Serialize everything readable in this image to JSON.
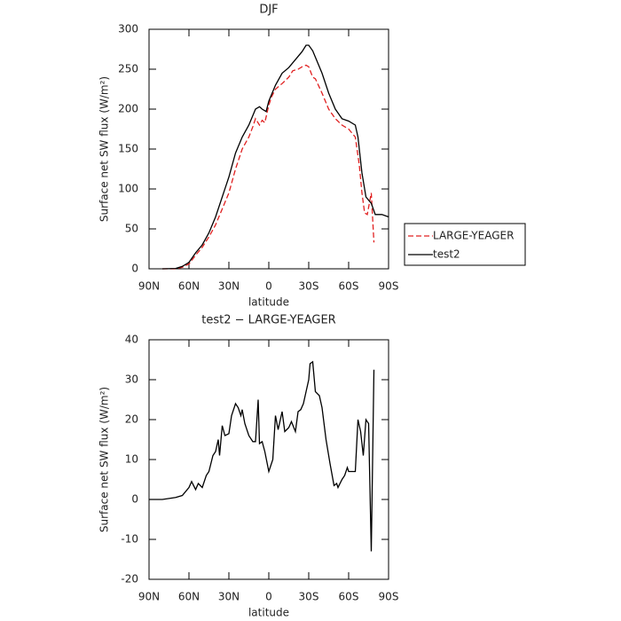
{
  "chart_data": [
    {
      "type": "line",
      "title": "DJF",
      "x_label": "latitude",
      "y_label": "Surface net SW flux (W/m²)",
      "xlim": [
        90,
        -90
      ],
      "xticks": [
        {
          "value": 90,
          "label": "90N"
        },
        {
          "value": 60,
          "label": "60N"
        },
        {
          "value": 30,
          "label": "30N"
        },
        0,
        {
          "value": -30,
          "label": "30S"
        },
        {
          "value": -60,
          "label": "60S"
        },
        {
          "value": -90,
          "label": "90S"
        }
      ],
      "ylim": [
        0,
        300
      ],
      "yticks": [
        0,
        50,
        100,
        150,
        200,
        250,
        300
      ],
      "legend": "right",
      "series": [
        {
          "name": "LARGE-YEAGER",
          "color": "#e02020",
          "dash": true,
          "x": [
            80,
            70,
            65,
            60,
            55,
            50,
            45,
            40,
            35,
            30,
            25,
            20,
            15,
            12,
            10,
            7,
            5,
            3,
            0,
            -2,
            -5,
            -10,
            -15,
            -18,
            -22,
            -25,
            -28,
            -30,
            -33,
            -35,
            -40,
            -45,
            -50,
            -55,
            -60,
            -65,
            -68,
            -70,
            -72,
            -74,
            -77,
            -79
          ],
          "values": [
            0,
            0,
            2,
            6,
            17,
            27,
            40,
            55,
            75,
            95,
            125,
            150,
            165,
            178,
            188,
            180,
            186,
            183,
            205,
            215,
            225,
            232,
            240,
            248,
            250,
            253,
            255,
            253,
            240,
            238,
            220,
            200,
            188,
            180,
            175,
            165,
            130,
            95,
            70,
            68,
            95,
            33
          ]
        },
        {
          "name": "test2",
          "color": "#000000",
          "dash": false,
          "x": [
            80,
            70,
            65,
            60,
            55,
            50,
            45,
            40,
            35,
            30,
            25,
            20,
            15,
            10,
            7,
            5,
            2,
            0,
            -5,
            -10,
            -15,
            -20,
            -25,
            -28,
            -30,
            -33,
            -35,
            -40,
            -45,
            -50,
            -55,
            -60,
            -65,
            -67,
            -70,
            -73,
            -77,
            -80,
            -85,
            -90
          ],
          "values": [
            0,
            0.5,
            3,
            8,
            20,
            30,
            45,
            65,
            90,
            115,
            145,
            165,
            180,
            200,
            203,
            200,
            197,
            210,
            230,
            245,
            252,
            262,
            272,
            280,
            280,
            273,
            265,
            245,
            220,
            200,
            188,
            185,
            180,
            165,
            120,
            90,
            82,
            68,
            68,
            65
          ]
        }
      ]
    },
    {
      "type": "line",
      "title": "test2 − LARGE-YEAGER",
      "x_label": "latitude",
      "y_label": "Surface net SW flux (W/m²)",
      "xlim": [
        90,
        -90
      ],
      "xticks": [
        {
          "value": 90,
          "label": "90N"
        },
        {
          "value": 60,
          "label": "60N"
        },
        {
          "value": 30,
          "label": "30N"
        },
        0,
        {
          "value": -30,
          "label": "30S"
        },
        {
          "value": -60,
          "label": "60S"
        },
        {
          "value": -90,
          "label": "90S"
        }
      ],
      "ylim": [
        -20,
        40
      ],
      "yticks": [
        -20,
        -10,
        0,
        10,
        20,
        30,
        40
      ],
      "series": [
        {
          "color": "#000000",
          "dash": false,
          "x": [
            90,
            80,
            70,
            65,
            60,
            58,
            55,
            53,
            50,
            47,
            45,
            42,
            40,
            38,
            37,
            35,
            33,
            30,
            28,
            25,
            23,
            21,
            20,
            18,
            15,
            12,
            10,
            8,
            7,
            5,
            3,
            0,
            -3,
            -5,
            -7,
            -10,
            -12,
            -15,
            -17,
            -20,
            -22,
            -24,
            -26,
            -28,
            -30,
            -31,
            -33,
            -35,
            -38,
            -40,
            -43,
            -46,
            -49,
            -51,
            -52,
            -55,
            -57,
            -59,
            -60,
            -65,
            -67,
            -69,
            -71,
            -73,
            -75,
            -77,
            -79
          ],
          "values": [
            0,
            0,
            0.5,
            1,
            3,
            4.5,
            2.5,
            4,
            3,
            6,
            7,
            11,
            12,
            15,
            11,
            18.5,
            16,
            16.5,
            21,
            24,
            23,
            21,
            22.5,
            19,
            16,
            14.5,
            14.5,
            25,
            14,
            14.5,
            12,
            7,
            10,
            21,
            17.5,
            22,
            17,
            18,
            19.5,
            17,
            22,
            22.5,
            24,
            27,
            30,
            34,
            34.5,
            27,
            26,
            23,
            15,
            9,
            3.5,
            4,
            3,
            5,
            6,
            8,
            7,
            7,
            20,
            17,
            11,
            20,
            19,
            -13,
            32.5
          ]
        }
      ]
    }
  ]
}
